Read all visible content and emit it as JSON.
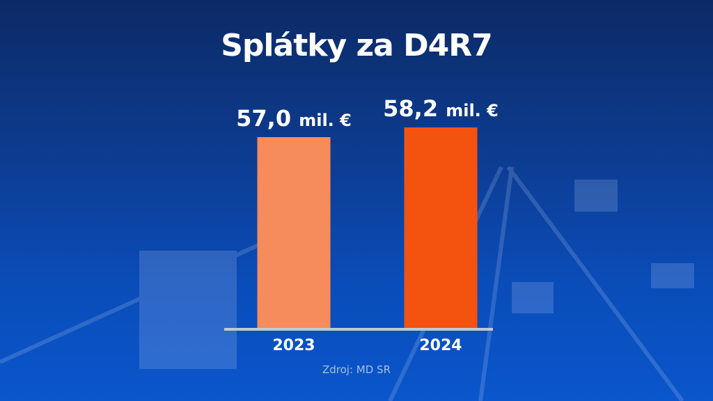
{
  "chart_data": {
    "type": "bar",
    "title": "Splátky za D4R7",
    "categories": [
      "2023",
      "2024"
    ],
    "values": [
      57.0,
      58.2
    ],
    "value_labels": [
      "57,0",
      "58,2"
    ],
    "unit": "mil. €",
    "colors": [
      "#f68b5c",
      "#f4520f"
    ],
    "xlabel": "",
    "ylabel": "",
    "ylim": [
      33.4,
      58.2
    ],
    "grid": false,
    "source": "Zdroj: MD SR"
  }
}
